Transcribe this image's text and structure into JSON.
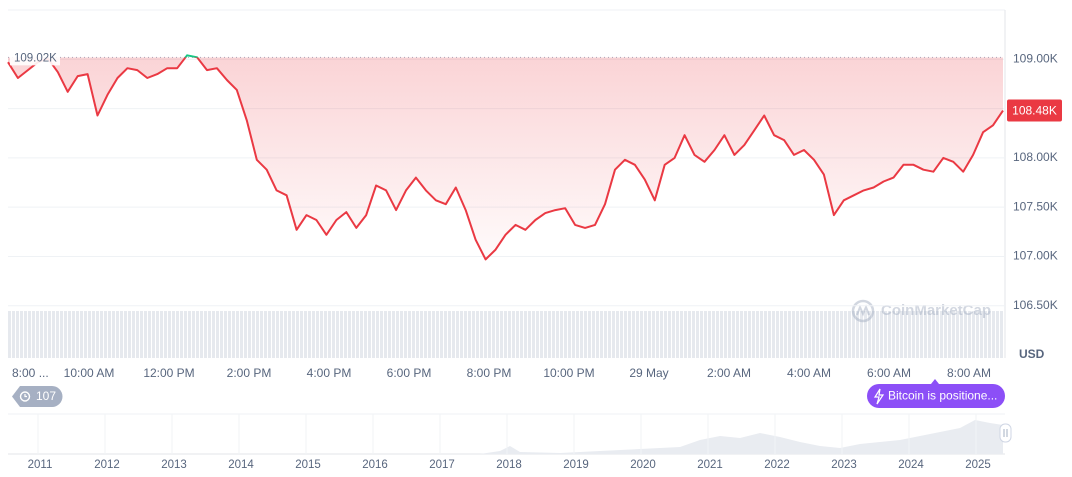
{
  "chart_data": {
    "type": "line",
    "series": [
      {
        "name": "Bitcoin",
        "color": "#ea3943",
        "color_above_reference": "#16c784",
        "values": [
          108.97,
          108.81,
          108.89,
          108.97,
          109.01,
          108.87,
          108.67,
          108.83,
          108.85,
          108.43,
          108.64,
          108.81,
          108.91,
          108.89,
          108.81,
          108.85,
          108.91,
          108.91,
          109.04,
          109.02,
          108.89,
          108.91,
          108.79,
          108.69,
          108.38,
          107.98,
          107.88,
          107.67,
          107.62,
          107.27,
          107.42,
          107.37,
          107.22,
          107.37,
          107.45,
          107.29,
          107.42,
          107.72,
          107.67,
          107.47,
          107.67,
          107.8,
          107.67,
          107.57,
          107.53,
          107.7,
          107.47,
          107.17,
          106.97,
          107.07,
          107.22,
          107.32,
          107.27,
          107.37,
          107.44,
          107.47,
          107.49,
          107.32,
          107.29,
          107.32,
          107.53,
          107.88,
          107.98,
          107.93,
          107.78,
          107.57,
          107.93,
          108.0,
          108.23,
          108.03,
          107.96,
          108.08,
          108.23,
          108.03,
          108.13,
          108.28,
          108.43,
          108.23,
          108.18,
          108.03,
          108.08,
          107.98,
          107.83,
          107.42,
          107.57,
          107.62,
          107.67,
          107.7,
          107.76,
          107.8,
          107.93,
          107.93,
          107.88,
          107.86,
          108.0,
          107.96,
          107.86,
          108.03,
          108.26,
          108.33,
          108.48
        ]
      }
    ],
    "ylim": [
      105.97,
      109.5
    ],
    "yticks": [
      {
        "value": 106.5,
        "label": "106.50K"
      },
      {
        "value": 107,
        "label": "107.00K"
      },
      {
        "value": 107.5,
        "label": "107.50K"
      },
      {
        "value": 108,
        "label": "108.00K"
      },
      {
        "value": 108.5,
        "label": "108.50K"
      },
      {
        "value": 109,
        "label": "109.00K"
      }
    ],
    "grid": true,
    "reference": {
      "value": 109.02,
      "label": "109.02K"
    },
    "current": {
      "value": 108.48,
      "label": "108.48K"
    },
    "x_tick_labels": [
      "8:00 ...",
      "10:00 AM",
      "12:00 PM",
      "2:00 PM",
      "4:00 PM",
      "6:00 PM",
      "8:00 PM",
      "10:00 PM",
      "29 May",
      "2:00 AM",
      "4:00 AM",
      "6:00 AM",
      "8:00 AM"
    ],
    "y_unit": "USD",
    "watermark": "CoinMarketCap",
    "events_count": "107",
    "news_label": "Bitcoin is positione...",
    "navigator_labels": [
      "2011",
      "2012",
      "2013",
      "2014",
      "2015",
      "2016",
      "2017",
      "2018",
      "2019",
      "2020",
      "2021",
      "2022",
      "2023",
      "2024",
      "2025"
    ]
  }
}
